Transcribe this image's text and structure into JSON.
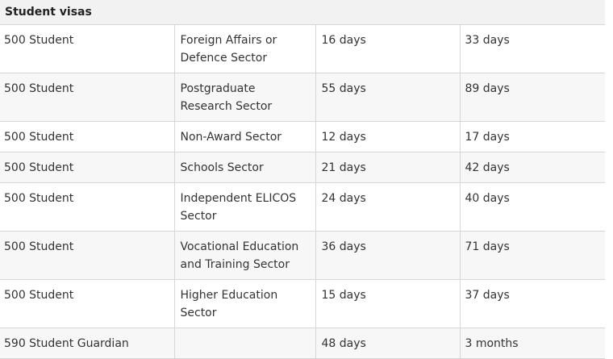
{
  "table": {
    "header": "Student visas",
    "rows": [
      {
        "visa": "500 Student",
        "sector": "Foreign Affairs or Defence Sector",
        "p75": "16 days",
        "p90": "33 days"
      },
      {
        "visa": "500 Student",
        "sector": "Postgraduate Research Sector",
        "p75": "55 days",
        "p90": "89 days"
      },
      {
        "visa": "500 Student",
        "sector": "Non-Award Sector",
        "p75": "12 days",
        "p90": "17 days"
      },
      {
        "visa": "500 Student",
        "sector": "Schools Sector",
        "p75": "21 days",
        "p90": "42 days"
      },
      {
        "visa": "500 Student",
        "sector": "Independent ELICOS Sector",
        "p75": "24 days",
        "p90": "40 days"
      },
      {
        "visa": "500 Student",
        "sector": "Vocational Education and Training Sector",
        "p75": "36 days",
        "p90": "71 days"
      },
      {
        "visa": "500 Student",
        "sector": "Higher Education Sector",
        "p75": "15 days",
        "p90": "37 days"
      },
      {
        "visa": "590 Student Guardian",
        "sector": "",
        "p75": "48 days",
        "p90": "3 months"
      }
    ]
  }
}
